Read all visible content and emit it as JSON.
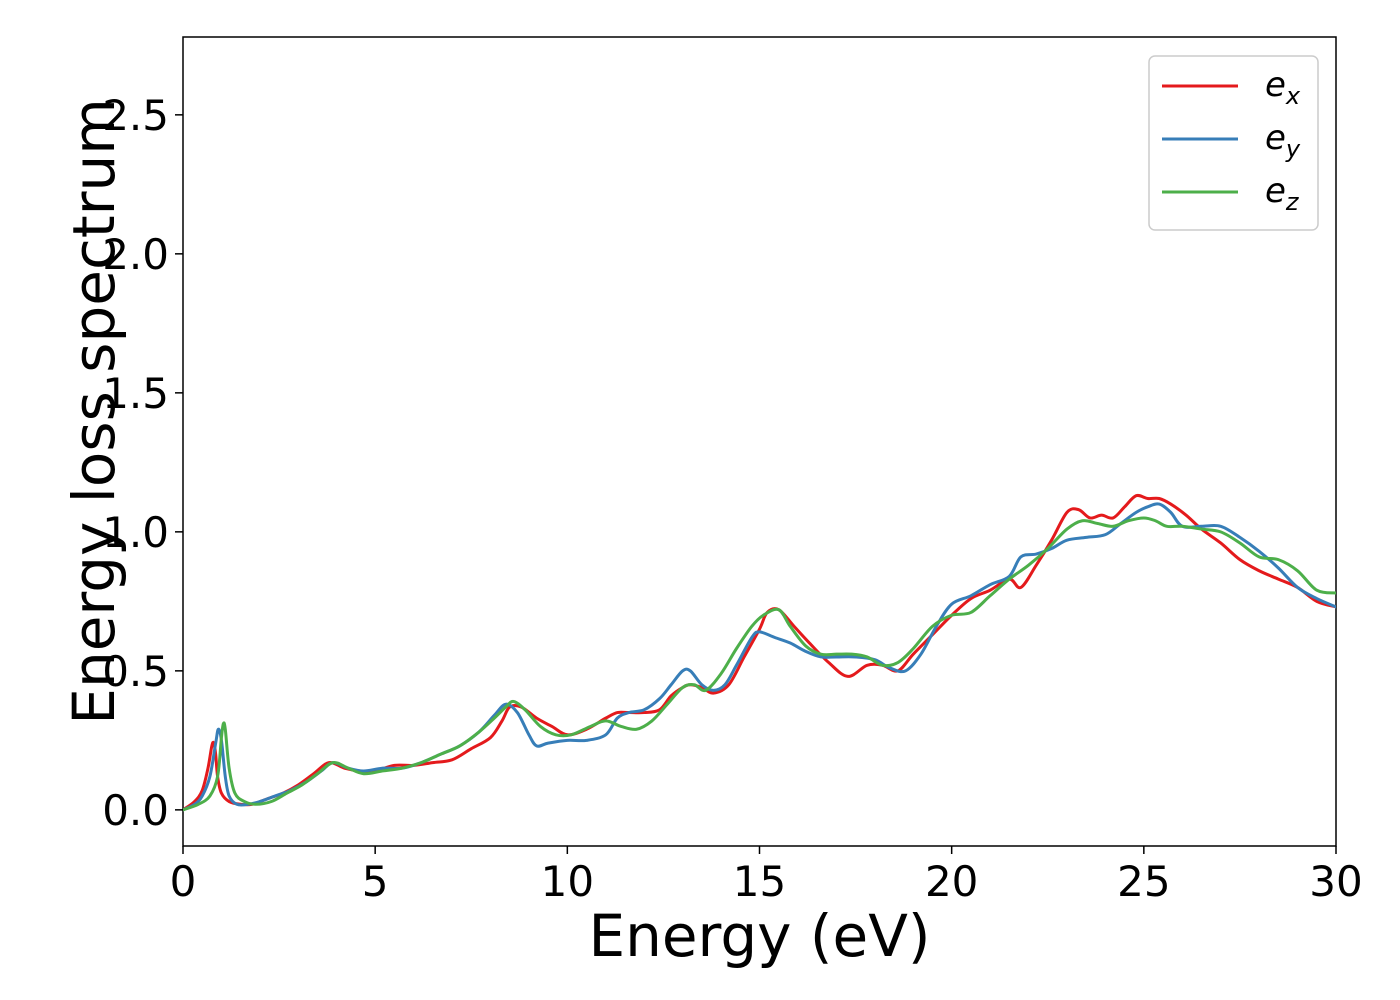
{
  "chart_data": {
    "type": "line",
    "xlabel": "Energy (eV)",
    "ylabel": "Energy loss spectrum",
    "xlim": [
      0,
      30
    ],
    "ylim": [
      -0.13,
      2.78
    ],
    "xticks": [
      0,
      5,
      10,
      15,
      20,
      25,
      30
    ],
    "xtick_labels": [
      "0",
      "5",
      "10",
      "15",
      "20",
      "25",
      "30"
    ],
    "yticks": [
      0.0,
      0.5,
      1.0,
      1.5,
      2.0,
      2.5
    ],
    "ytick_labels": [
      "0.0",
      "0.5",
      "1.0",
      "1.5",
      "2.0",
      "2.5"
    ],
    "grid": false,
    "legend_position": "top-right",
    "series": [
      {
        "name": "e",
        "subscript": "x",
        "color": "#e41a1c",
        "x": [
          0,
          0.3,
          0.5,
          0.65,
          0.75,
          0.8,
          0.85,
          0.9,
          1.0,
          1.2,
          1.5,
          1.8,
          2.2,
          2.6,
          3.0,
          3.4,
          3.8,
          4.2,
          4.6,
          5.0,
          5.5,
          6.0,
          6.5,
          7.0,
          7.5,
          8.0,
          8.3,
          8.5,
          8.8,
          9.2,
          9.6,
          10.0,
          10.5,
          11.0,
          11.3,
          11.6,
          12.0,
          12.4,
          12.7,
          13.0,
          13.2,
          13.5,
          13.8,
          14.2,
          14.6,
          15.0,
          15.2,
          15.5,
          15.9,
          16.3,
          16.8,
          17.3,
          17.8,
          18.2,
          18.6,
          19.0,
          19.5,
          20.0,
          20.5,
          21.0,
          21.5,
          21.8,
          22.2,
          22.6,
          23.0,
          23.3,
          23.6,
          23.9,
          24.2,
          24.5,
          24.8,
          25.1,
          25.4,
          25.7,
          26.1,
          26.5,
          27.0,
          27.5,
          28.0,
          28.5,
          29.0,
          29.5,
          30.0
        ],
        "y": [
          0.0,
          0.03,
          0.07,
          0.15,
          0.23,
          0.24,
          0.2,
          0.12,
          0.06,
          0.03,
          0.02,
          0.02,
          0.04,
          0.06,
          0.09,
          0.13,
          0.17,
          0.15,
          0.14,
          0.14,
          0.16,
          0.16,
          0.17,
          0.18,
          0.22,
          0.26,
          0.32,
          0.37,
          0.37,
          0.33,
          0.3,
          0.27,
          0.29,
          0.33,
          0.35,
          0.35,
          0.35,
          0.36,
          0.41,
          0.44,
          0.45,
          0.44,
          0.42,
          0.45,
          0.55,
          0.65,
          0.71,
          0.72,
          0.66,
          0.6,
          0.53,
          0.48,
          0.52,
          0.52,
          0.5,
          0.56,
          0.63,
          0.7,
          0.76,
          0.79,
          0.83,
          0.8,
          0.88,
          0.97,
          1.07,
          1.08,
          1.05,
          1.06,
          1.05,
          1.09,
          1.13,
          1.12,
          1.12,
          1.1,
          1.06,
          1.01,
          0.96,
          0.9,
          0.86,
          0.83,
          0.8,
          0.75,
          0.73
        ]
      },
      {
        "name": "e",
        "subscript": "y",
        "color": "#377eb8",
        "x": [
          0,
          0.3,
          0.5,
          0.7,
          0.85,
          0.92,
          1.0,
          1.1,
          1.2,
          1.4,
          1.7,
          2.0,
          2.4,
          2.8,
          3.2,
          3.6,
          3.9,
          4.3,
          4.7,
          5.2,
          5.7,
          6.2,
          6.7,
          7.2,
          7.7,
          8.1,
          8.4,
          8.7,
          9.0,
          9.2,
          9.5,
          10.0,
          10.5,
          11.0,
          11.3,
          11.6,
          12.0,
          12.4,
          12.7,
          13.0,
          13.2,
          13.5,
          13.8,
          14.1,
          14.4,
          14.8,
          15.0,
          15.4,
          15.8,
          16.2,
          16.6,
          17.0,
          17.5,
          18.0,
          18.4,
          18.8,
          19.2,
          19.6,
          20.0,
          20.5,
          21.0,
          21.5,
          21.8,
          22.2,
          22.6,
          23.0,
          23.5,
          24.0,
          24.4,
          24.8,
          25.1,
          25.4,
          25.7,
          26.0,
          26.5,
          27.0,
          27.5,
          28.0,
          28.5,
          29.0,
          29.5,
          30.0
        ],
        "y": [
          0.0,
          0.02,
          0.05,
          0.12,
          0.24,
          0.29,
          0.25,
          0.12,
          0.05,
          0.02,
          0.02,
          0.03,
          0.05,
          0.07,
          0.1,
          0.14,
          0.17,
          0.15,
          0.14,
          0.15,
          0.15,
          0.17,
          0.2,
          0.23,
          0.28,
          0.34,
          0.38,
          0.35,
          0.27,
          0.23,
          0.24,
          0.25,
          0.25,
          0.27,
          0.33,
          0.35,
          0.36,
          0.4,
          0.45,
          0.5,
          0.5,
          0.45,
          0.43,
          0.45,
          0.52,
          0.62,
          0.64,
          0.62,
          0.6,
          0.57,
          0.55,
          0.55,
          0.55,
          0.54,
          0.51,
          0.5,
          0.56,
          0.66,
          0.74,
          0.77,
          0.81,
          0.84,
          0.91,
          0.92,
          0.94,
          0.97,
          0.98,
          0.99,
          1.03,
          1.07,
          1.09,
          1.1,
          1.07,
          1.02,
          1.02,
          1.02,
          0.98,
          0.93,
          0.87,
          0.8,
          0.76,
          0.73
        ]
      },
      {
        "name": "e",
        "subscript": "z",
        "color": "#4daf4a",
        "x": [
          0,
          0.4,
          0.7,
          0.9,
          1.0,
          1.05,
          1.1,
          1.2,
          1.35,
          1.6,
          1.9,
          2.3,
          2.7,
          3.1,
          3.5,
          3.9,
          4.3,
          4.7,
          5.2,
          5.7,
          6.2,
          6.7,
          7.2,
          7.7,
          8.1,
          8.4,
          8.6,
          8.9,
          9.3,
          9.7,
          10.1,
          10.6,
          11.0,
          11.4,
          11.8,
          12.2,
          12.6,
          13.0,
          13.3,
          13.6,
          14.0,
          14.4,
          14.8,
          15.1,
          15.5,
          15.8,
          16.2,
          16.6,
          17.0,
          17.4,
          17.8,
          18.2,
          18.6,
          19.0,
          19.5,
          20.0,
          20.5,
          21.0,
          21.5,
          22.0,
          22.5,
          23.0,
          23.4,
          23.8,
          24.2,
          24.6,
          25.0,
          25.3,
          25.6,
          26.0,
          26.5,
          27.0,
          27.5,
          28.0,
          28.5,
          29.0,
          29.5,
          30.0
        ],
        "y": [
          0.0,
          0.02,
          0.05,
          0.12,
          0.26,
          0.31,
          0.29,
          0.15,
          0.06,
          0.03,
          0.02,
          0.03,
          0.06,
          0.09,
          0.13,
          0.17,
          0.15,
          0.13,
          0.14,
          0.15,
          0.17,
          0.2,
          0.23,
          0.28,
          0.33,
          0.37,
          0.39,
          0.36,
          0.3,
          0.27,
          0.27,
          0.3,
          0.32,
          0.3,
          0.29,
          0.32,
          0.38,
          0.44,
          0.45,
          0.43,
          0.49,
          0.58,
          0.66,
          0.7,
          0.72,
          0.66,
          0.59,
          0.56,
          0.56,
          0.56,
          0.55,
          0.52,
          0.53,
          0.58,
          0.66,
          0.7,
          0.71,
          0.77,
          0.83,
          0.88,
          0.94,
          1.01,
          1.04,
          1.03,
          1.02,
          1.04,
          1.05,
          1.04,
          1.02,
          1.02,
          1.01,
          1.0,
          0.96,
          0.91,
          0.9,
          0.86,
          0.79,
          0.78
        ]
      }
    ]
  }
}
